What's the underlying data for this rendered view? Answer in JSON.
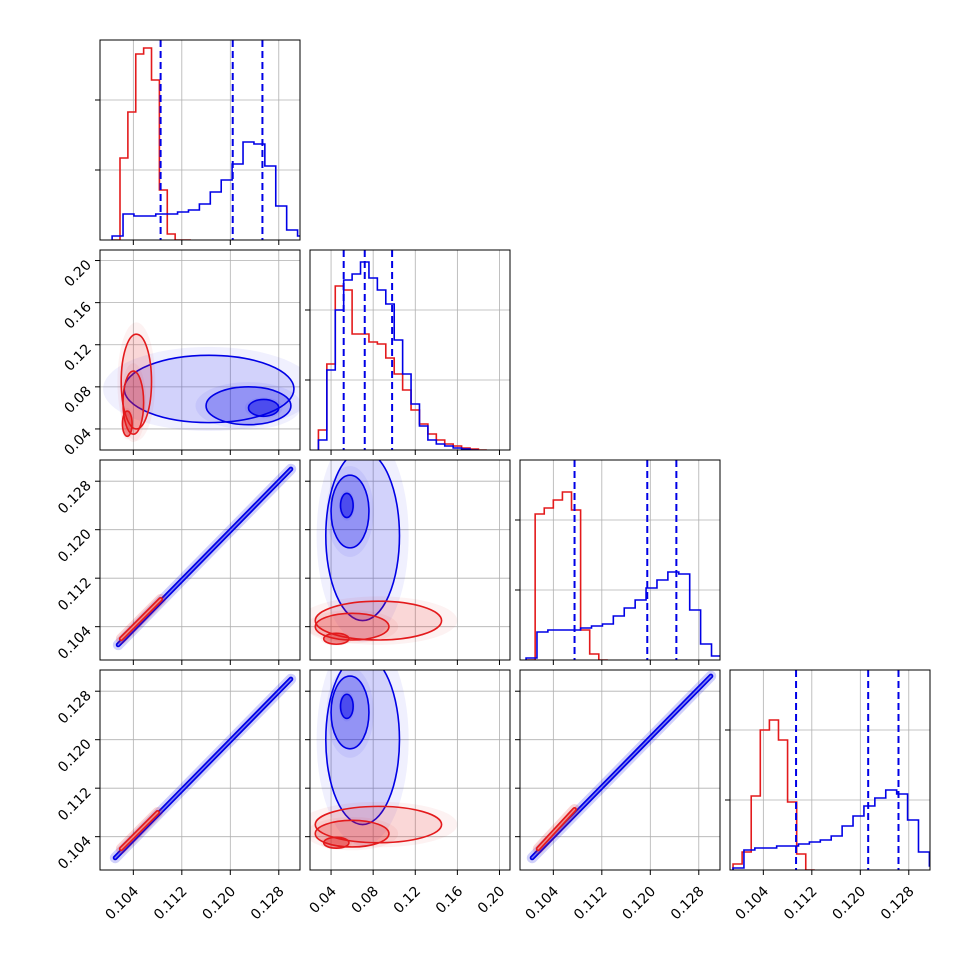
{
  "colors": {
    "red": "#e31a1c",
    "blue": "#0000e6",
    "grid": "#b0b0b0"
  },
  "chart_data": {
    "type": "corner",
    "grid": true,
    "n_params": 4,
    "ticks": {
      "p1": [
        "0.104",
        "0.112",
        "0.120",
        "0.128"
      ],
      "p2": [
        "0.04",
        "0.08",
        "0.12",
        "0.16",
        "0.20"
      ],
      "p3": [
        "0.104",
        "0.112",
        "0.120",
        "0.128"
      ],
      "p4": [
        "0.104",
        "0.112",
        "0.120",
        "0.128"
      ]
    },
    "ranges": {
      "p1": [
        0.0985,
        0.1315
      ],
      "p2": [
        0.02,
        0.21
      ],
      "p3": [
        0.0985,
        0.1315
      ],
      "p4": [
        0.0985,
        0.1315
      ]
    },
    "quantiles": {
      "p1": [
        0.1085,
        0.1204,
        0.1253
      ],
      "p2": [
        0.052,
        0.072,
        0.098
      ],
      "p3": [
        0.1075,
        0.1195,
        0.1243
      ],
      "p4": [
        0.1094,
        0.1213,
        0.1263
      ]
    },
    "hist_1d": [
      {
        "param": "p1",
        "red": {
          "x": [
            0.1005,
            0.1018,
            0.1031,
            0.1044,
            0.1057,
            0.107,
            0.1083,
            0.1096,
            0.1109,
            0.1122
          ],
          "y": [
            0,
            0.41,
            0.64,
            0.93,
            0.96,
            0.8,
            0.25,
            0.03,
            0,
            0
          ]
        },
        "blue": {
          "x": [
            0.1005,
            0.1023,
            0.1041,
            0.1059,
            0.1077,
            0.1095,
            0.1113,
            0.1131,
            0.1149,
            0.1167,
            0.1185,
            0.1203,
            0.1221,
            0.1239,
            0.1257,
            0.1275,
            0.1293,
            0.1311
          ],
          "y": [
            0.02,
            0.13,
            0.12,
            0.12,
            0.13,
            0.13,
            0.14,
            0.15,
            0.18,
            0.24,
            0.3,
            0.38,
            0.49,
            0.48,
            0.37,
            0.17,
            0.05,
            0.02
          ]
        }
      },
      {
        "param": "p2",
        "red": {
          "x": [
            0.028,
            0.036,
            0.044,
            0.052,
            0.06,
            0.068,
            0.076,
            0.084,
            0.092,
            0.1,
            0.108,
            0.116,
            0.124,
            0.132,
            0.14,
            0.148,
            0.156,
            0.164,
            0.172,
            0.18
          ],
          "y": [
            0.1,
            0.43,
            0.82,
            0.8,
            0.58,
            0.58,
            0.54,
            0.53,
            0.46,
            0.38,
            0.3,
            0.2,
            0.13,
            0.08,
            0.05,
            0.03,
            0.02,
            0.01,
            0.005,
            0
          ]
        },
        "blue": {
          "x": [
            0.028,
            0.036,
            0.044,
            0.052,
            0.06,
            0.068,
            0.076,
            0.084,
            0.092,
            0.1,
            0.108,
            0.116,
            0.124,
            0.132,
            0.14,
            0.148,
            0.156,
            0.164,
            0.172
          ],
          "y": [
            0.05,
            0.4,
            0.7,
            0.85,
            0.88,
            0.94,
            0.86,
            0.8,
            0.73,
            0.55,
            0.38,
            0.23,
            0.12,
            0.05,
            0.03,
            0.02,
            0.01,
            0.005,
            0
          ]
        }
      },
      {
        "param": "p3",
        "red": {
          "x": [
            0.0995,
            0.101,
            0.1025,
            0.104,
            0.1055,
            0.107,
            0.1085,
            0.11,
            0.1115
          ],
          "y": [
            0,
            0.73,
            0.76,
            0.8,
            0.84,
            0.75,
            0.15,
            0.03,
            0
          ]
        },
        "blue": {
          "x": [
            0.0995,
            0.1013,
            0.1031,
            0.1049,
            0.1067,
            0.1085,
            0.1103,
            0.1121,
            0.1139,
            0.1157,
            0.1175,
            0.1193,
            0.1211,
            0.1229,
            0.1247,
            0.1265,
            0.1283,
            0.1301
          ],
          "y": [
            0.01,
            0.14,
            0.15,
            0.15,
            0.15,
            0.16,
            0.17,
            0.18,
            0.22,
            0.26,
            0.3,
            0.36,
            0.4,
            0.44,
            0.43,
            0.25,
            0.08,
            0.02
          ]
        }
      },
      {
        "param": "p4",
        "red": {
          "x": [
            0.099,
            0.1005,
            0.102,
            0.1035,
            0.105,
            0.1065,
            0.108,
            0.1095,
            0.111
          ],
          "y": [
            0.03,
            0.09,
            0.37,
            0.7,
            0.75,
            0.65,
            0.34,
            0.08,
            0
          ]
        },
        "blue": {
          "x": [
            0.099,
            0.1008,
            0.1026,
            0.1044,
            0.1062,
            0.108,
            0.1098,
            0.1116,
            0.1134,
            0.1152,
            0.117,
            0.1188,
            0.1206,
            0.1224,
            0.1242,
            0.126,
            0.1278,
            0.1296,
            0.1314
          ],
          "y": [
            0.01,
            0.1,
            0.11,
            0.11,
            0.12,
            0.12,
            0.13,
            0.14,
            0.15,
            0.17,
            0.22,
            0.27,
            0.32,
            0.36,
            0.4,
            0.38,
            0.25,
            0.09,
            0.02
          ]
        }
      }
    ],
    "contours_2d": [
      {
        "x": "p1",
        "y": "p2",
        "red": [
          {
            "cx": 0.1045,
            "cy": 0.085,
            "rx": 0.0025,
            "ry": 0.045
          },
          {
            "cx": 0.104,
            "cy": 0.065,
            "rx": 0.0017,
            "ry": 0.03
          },
          {
            "cx": 0.103,
            "cy": 0.045,
            "rx": 0.0008,
            "ry": 0.012
          }
        ],
        "blue": [
          {
            "cx": 0.1165,
            "cy": 0.078,
            "rx": 0.014,
            "ry": 0.032
          },
          {
            "cx": 0.123,
            "cy": 0.062,
            "rx": 0.007,
            "ry": 0.018
          },
          {
            "cx": 0.1255,
            "cy": 0.06,
            "rx": 0.0025,
            "ry": 0.008
          }
        ]
      },
      {
        "x": "p1",
        "y": "p3",
        "red": [
          {
            "x0": 0.102,
            "y0": 0.102,
            "x1": 0.1085,
            "y1": 0.1085,
            "w": 0.0008
          }
        ],
        "blue": [
          {
            "x0": 0.1015,
            "y0": 0.101,
            "x1": 0.13,
            "y1": 0.13,
            "w": 0.0008
          }
        ]
      },
      {
        "x": "p2",
        "y": "p3",
        "red": [
          {
            "cx": 0.085,
            "cy": 0.105,
            "rx": 0.06,
            "ry": 0.0032
          },
          {
            "cx": 0.06,
            "cy": 0.104,
            "rx": 0.035,
            "ry": 0.0022
          },
          {
            "cx": 0.045,
            "cy": 0.102,
            "rx": 0.012,
            "ry": 0.0009
          }
        ],
        "blue": [
          {
            "cx": 0.07,
            "cy": 0.119,
            "rx": 0.035,
            "ry": 0.014
          },
          {
            "cx": 0.058,
            "cy": 0.123,
            "rx": 0.018,
            "ry": 0.006
          },
          {
            "cx": 0.055,
            "cy": 0.124,
            "rx": 0.006,
            "ry": 0.002
          }
        ]
      },
      {
        "x": "p1",
        "y": "p4",
        "red": [
          {
            "x0": 0.102,
            "y0": 0.102,
            "x1": 0.108,
            "y1": 0.108,
            "w": 0.0008
          }
        ],
        "blue": [
          {
            "x0": 0.101,
            "y0": 0.1005,
            "x1": 0.13,
            "y1": 0.13,
            "w": 0.0008
          }
        ]
      },
      {
        "x": "p2",
        "y": "p4",
        "red": [
          {
            "cx": 0.085,
            "cy": 0.106,
            "rx": 0.06,
            "ry": 0.003
          },
          {
            "cx": 0.06,
            "cy": 0.1045,
            "rx": 0.035,
            "ry": 0.0022
          },
          {
            "cx": 0.045,
            "cy": 0.103,
            "rx": 0.012,
            "ry": 0.0009
          }
        ],
        "blue": [
          {
            "cx": 0.07,
            "cy": 0.12,
            "rx": 0.035,
            "ry": 0.014
          },
          {
            "cx": 0.058,
            "cy": 0.1245,
            "rx": 0.018,
            "ry": 0.006
          },
          {
            "cx": 0.055,
            "cy": 0.1255,
            "rx": 0.006,
            "ry": 0.002
          }
        ]
      },
      {
        "x": "p3",
        "y": "p4",
        "red": [
          {
            "x0": 0.1015,
            "y0": 0.102,
            "x1": 0.1075,
            "y1": 0.1085,
            "w": 0.0008
          }
        ],
        "blue": [
          {
            "x0": 0.1005,
            "y0": 0.1005,
            "x1": 0.13,
            "y1": 0.1305,
            "w": 0.0008
          }
        ]
      }
    ]
  }
}
